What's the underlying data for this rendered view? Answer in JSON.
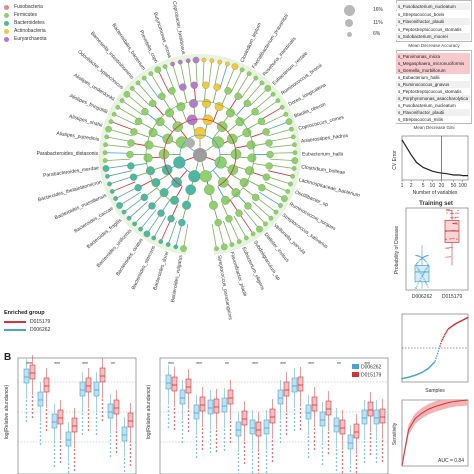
{
  "panel_a_legend": [
    {
      "label": "Fusobacteria",
      "color": "#e38c8c"
    },
    {
      "label": "Firmicutes",
      "color": "#8fcf6d"
    },
    {
      "label": "Bacteroidetes",
      "color": "#4cb7a3"
    },
    {
      "label": "Actinobacteria",
      "color": "#f2c744"
    },
    {
      "label": "Euryarchaeota",
      "color": "#b678d4"
    }
  ],
  "size_legend": [
    "16%",
    "11%",
    "6%"
  ],
  "enriched_group": {
    "title": "Enriched group",
    "items": [
      {
        "label": "D015179",
        "color": "#d2343a"
      },
      {
        "label": "D006262",
        "color": "#4aa3d0"
      }
    ]
  },
  "tree_labels_left": [
    "Bacteroides_vulgatus",
    "Bacteroides_dorei",
    "Bacteroides_stercoris",
    "Bacteroides_ovatus",
    "Bacteroides_uniformis",
    "Bacteroides_fragilis",
    "Bacteroides_caccae",
    "Bacteroides_massiliensis",
    "Bacteroides_thetaiotaomicron",
    "Parabacteroides_merdae",
    "Parabacteroides_distasonis",
    "Alistipes_putredinis",
    "Alistipes_shahii",
    "Alistipes_finegoldii",
    "Alistipes_onderdonkii",
    "Odoribacter_splanchnicus",
    "Barnesiella_intestinihominis",
    "Bacteroidales_bacterium",
    "Prevotella_copri",
    "Butyricimonas_virosa",
    "Coprobacter_fastidiosus"
  ],
  "tree_labels_right": [
    "Clostridium_leptum",
    "Faecalibacterium_prausnitzii",
    "Roseburia_intestinalis",
    "Eubacterium_rectale",
    "Ruminococcus_bromii",
    "Dorea_longicatena",
    "Blautia_obeum",
    "Coprococcus_comes",
    "Anaerostipes_hadrus",
    "Eubacterium_hallii",
    "Clostridium_bolteae",
    "Lachnospiraceae_bacterium",
    "Oscillibacter_sp",
    "Ruminococcus_torques",
    "Streptococcus_salivarius",
    "Veillonella_parvula",
    "Dialister_invisus",
    "Subdoligranulum_sp",
    "Eubacterium_eligens",
    "Flavonifractor_plautii",
    "Streptococcus_parasanguinis"
  ],
  "mda_features": [
    "s_Fusobacterium_nucleatum",
    "s_Streptococcus_bovis",
    "s_Flavonifractor_plautii",
    "s_Peptostreptococcus_stomatis",
    "s_Solobacterium_moorei"
  ],
  "mda_axis_label": "Mean Decrease Accuracy",
  "mdg_features": [
    {
      "label": "s_Parvimonas_micra",
      "highlight": true
    },
    {
      "label": "s_Megasphaera_micronuciformis",
      "highlight": true
    },
    {
      "label": "s_Gemella_morbillorum",
      "highlight": true
    },
    {
      "label": "s_Eubacterium_hallii",
      "highlight": false
    },
    {
      "label": "s_Ruminococcus_gnavus",
      "highlight": false
    },
    {
      "label": "s_Peptostreptococcus_stomatis",
      "highlight": false
    },
    {
      "label": "s_Porphyromonas_asaccharolytica",
      "highlight": false
    },
    {
      "label": "s_Fusobacterium_nucleatum",
      "highlight": false
    },
    {
      "label": "s_Flavonifractor_plautii",
      "highlight": false
    },
    {
      "label": "s_Streptococcus_mitis",
      "highlight": false
    }
  ],
  "mdg_axis_label": "Mean Decrease Gini",
  "cv_chart": {
    "ylabel": "CV Error",
    "xlabel": "Number of variables",
    "xticks": [
      "1",
      "2",
      "5",
      "10",
      "20",
      "50",
      "100"
    ]
  },
  "training_box": {
    "title": "Training set",
    "ylabel": "Probability of Disease",
    "groups": [
      "D006262",
      "D015179"
    ]
  },
  "sorted_prob": {
    "xlabel": "Samples"
  },
  "roc": {
    "ylabel": "Sensitivity",
    "auc_text": "AUC = 0.84"
  },
  "panel_b": {
    "label": "B",
    "ylabel": "log(Relative abundance)",
    "legend": [
      {
        "label": "D006262",
        "color": "#4aa3d0"
      },
      {
        "label": "D015179",
        "color": "#d2343a"
      }
    ],
    "sig_marks": [
      "***",
      "***",
      "***",
      "**",
      "***",
      "***",
      "**",
      "***",
      "***",
      "***",
      "**",
      "***"
    ]
  },
  "chart_data": [
    {
      "type": "line",
      "xlabel": "Number of variables",
      "ylabel": "CV Error",
      "x": [
        1,
        2,
        3,
        5,
        8,
        10,
        15,
        20,
        30,
        50,
        80,
        100,
        150
      ],
      "series": [
        {
          "values": [
            0.52,
            0.4,
            0.34,
            0.3,
            0.28,
            0.27,
            0.26,
            0.255,
            0.25,
            0.24,
            0.24,
            0.235,
            0.235
          ]
        }
      ]
    },
    {
      "type": "bar",
      "title": "Training set",
      "ylabel": "Probability of Disease",
      "categories": [
        "D006262",
        "D015179"
      ],
      "values": [
        0.22,
        0.72
      ]
    },
    {
      "type": "line",
      "xlabel": "Samples",
      "x": [
        0,
        10,
        20,
        30,
        40,
        50,
        55,
        60,
        65,
        70,
        80,
        90,
        100
      ],
      "series": [
        {
          "values": [
            0.05,
            0.07,
            0.1,
            0.14,
            0.2,
            0.3,
            0.45,
            0.6,
            0.7,
            0.78,
            0.85,
            0.9,
            0.95
          ]
        }
      ]
    },
    {
      "type": "line",
      "ylabel": "Sensitivity",
      "x": [
        1.0,
        0.9,
        0.8,
        0.7,
        0.6,
        0.5,
        0.4,
        0.3,
        0.2,
        0.1,
        0.0
      ],
      "series": [
        {
          "values": [
            0.0,
            0.55,
            0.72,
            0.8,
            0.86,
            0.9,
            0.93,
            0.96,
            0.98,
            0.99,
            1.0
          ]
        }
      ]
    }
  ]
}
